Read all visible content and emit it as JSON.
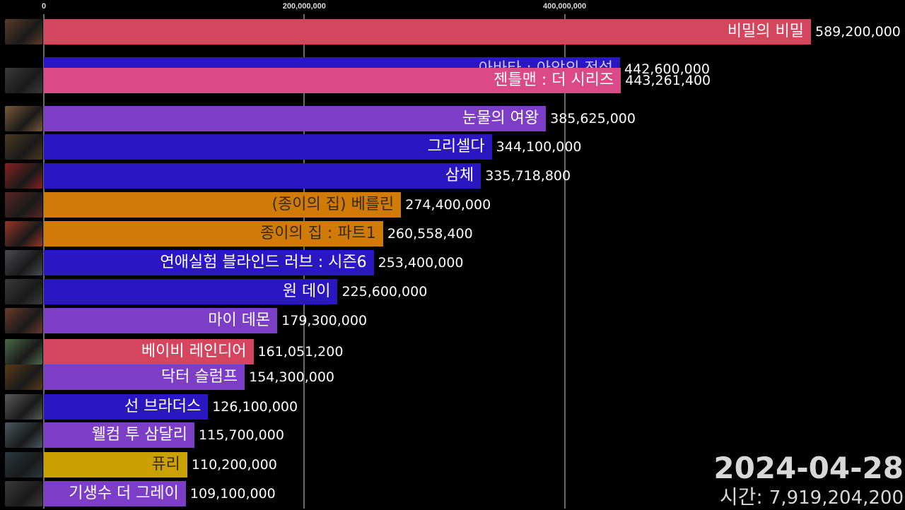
{
  "chart_data": {
    "type": "bar",
    "orientation": "horizontal",
    "x_ticks": [
      "0",
      "200,000,000",
      "400,000,000"
    ],
    "x_tick_values": [
      0,
      200000000,
      400000000
    ],
    "grid": true,
    "colors": {
      "red": "#d5455e",
      "pink": "#db4a86",
      "blue": "#2b17c2",
      "purple": "#7d3ec7",
      "orange": "#d07a08",
      "yellow": "#caa100",
      "background": "#000000"
    },
    "bars": [
      {
        "label": "비밀의 비밀",
        "value": 589200000,
        "value_label": "589,200,000",
        "color": "red",
        "thumb": "poster-thumbnail"
      },
      {
        "label": "아바타 : 아앙의 전설",
        "value": 442600000,
        "value_label": "442,600,000",
        "color": "blue",
        "thumb": "poster-thumbnail"
      },
      {
        "label": "젠틀맨 : 더 시리즈",
        "value": 443261400,
        "value_label": "443,261,400",
        "color": "pink",
        "thumb": "poster-thumbnail"
      },
      {
        "label": "눈물의 여왕",
        "value": 385625000,
        "value_label": "385,625,000",
        "color": "purple",
        "thumb": "poster-thumbnail"
      },
      {
        "label": "그리셀다",
        "value": 344100000,
        "value_label": "344,100,000",
        "color": "blue",
        "thumb": "poster-thumbnail"
      },
      {
        "label": "삼체",
        "value": 335718800,
        "value_label": "335,718,800",
        "color": "blue",
        "thumb": "poster-thumbnail"
      },
      {
        "label": "(종이의 집) 베를린",
        "value": 274400000,
        "value_label": "274,400,000",
        "color": "orange",
        "thumb": "poster-thumbnail"
      },
      {
        "label": "종이의 집 : 파트1",
        "value": 260558400,
        "value_label": "260,558,400",
        "color": "orange",
        "thumb": "poster-thumbnail"
      },
      {
        "label": "연애실험 블라인드 러브 : 시즌6",
        "value": 253400000,
        "value_label": "253,400,000",
        "color": "blue",
        "thumb": "poster-thumbnail"
      },
      {
        "label": "원 데이",
        "value": 225600000,
        "value_label": "225,600,000",
        "color": "blue",
        "thumb": "poster-thumbnail"
      },
      {
        "label": "마이 데몬",
        "value": 179300000,
        "value_label": "179,300,000",
        "color": "purple",
        "thumb": "poster-thumbnail"
      },
      {
        "label": "베이비 레인디어",
        "value": 161051200,
        "value_label": "161,051,200",
        "color": "red",
        "thumb": "poster-thumbnail"
      },
      {
        "label": "닥터 슬럼프",
        "value": 154300000,
        "value_label": "154,300,000",
        "color": "purple",
        "thumb": "poster-thumbnail"
      },
      {
        "label": "선 브라더스",
        "value": 126100000,
        "value_label": "126,100,000",
        "color": "blue",
        "thumb": "poster-thumbnail"
      },
      {
        "label": "웰컴 투 삼달리",
        "value": 115700000,
        "value_label": "115,700,000",
        "color": "purple",
        "thumb": "poster-thumbnail"
      },
      {
        "label": "퓨리",
        "value": 110200000,
        "value_label": "110,200,000",
        "color": "yellow",
        "thumb": "poster-thumbnail"
      },
      {
        "label": "기생수 더 그레이",
        "value": 109100000,
        "value_label": "109,100,000",
        "color": "purple",
        "thumb": "poster-thumbnail"
      }
    ],
    "date": "2024-04-28",
    "total_label": "시간:",
    "total_value": "7,919,204,200"
  }
}
